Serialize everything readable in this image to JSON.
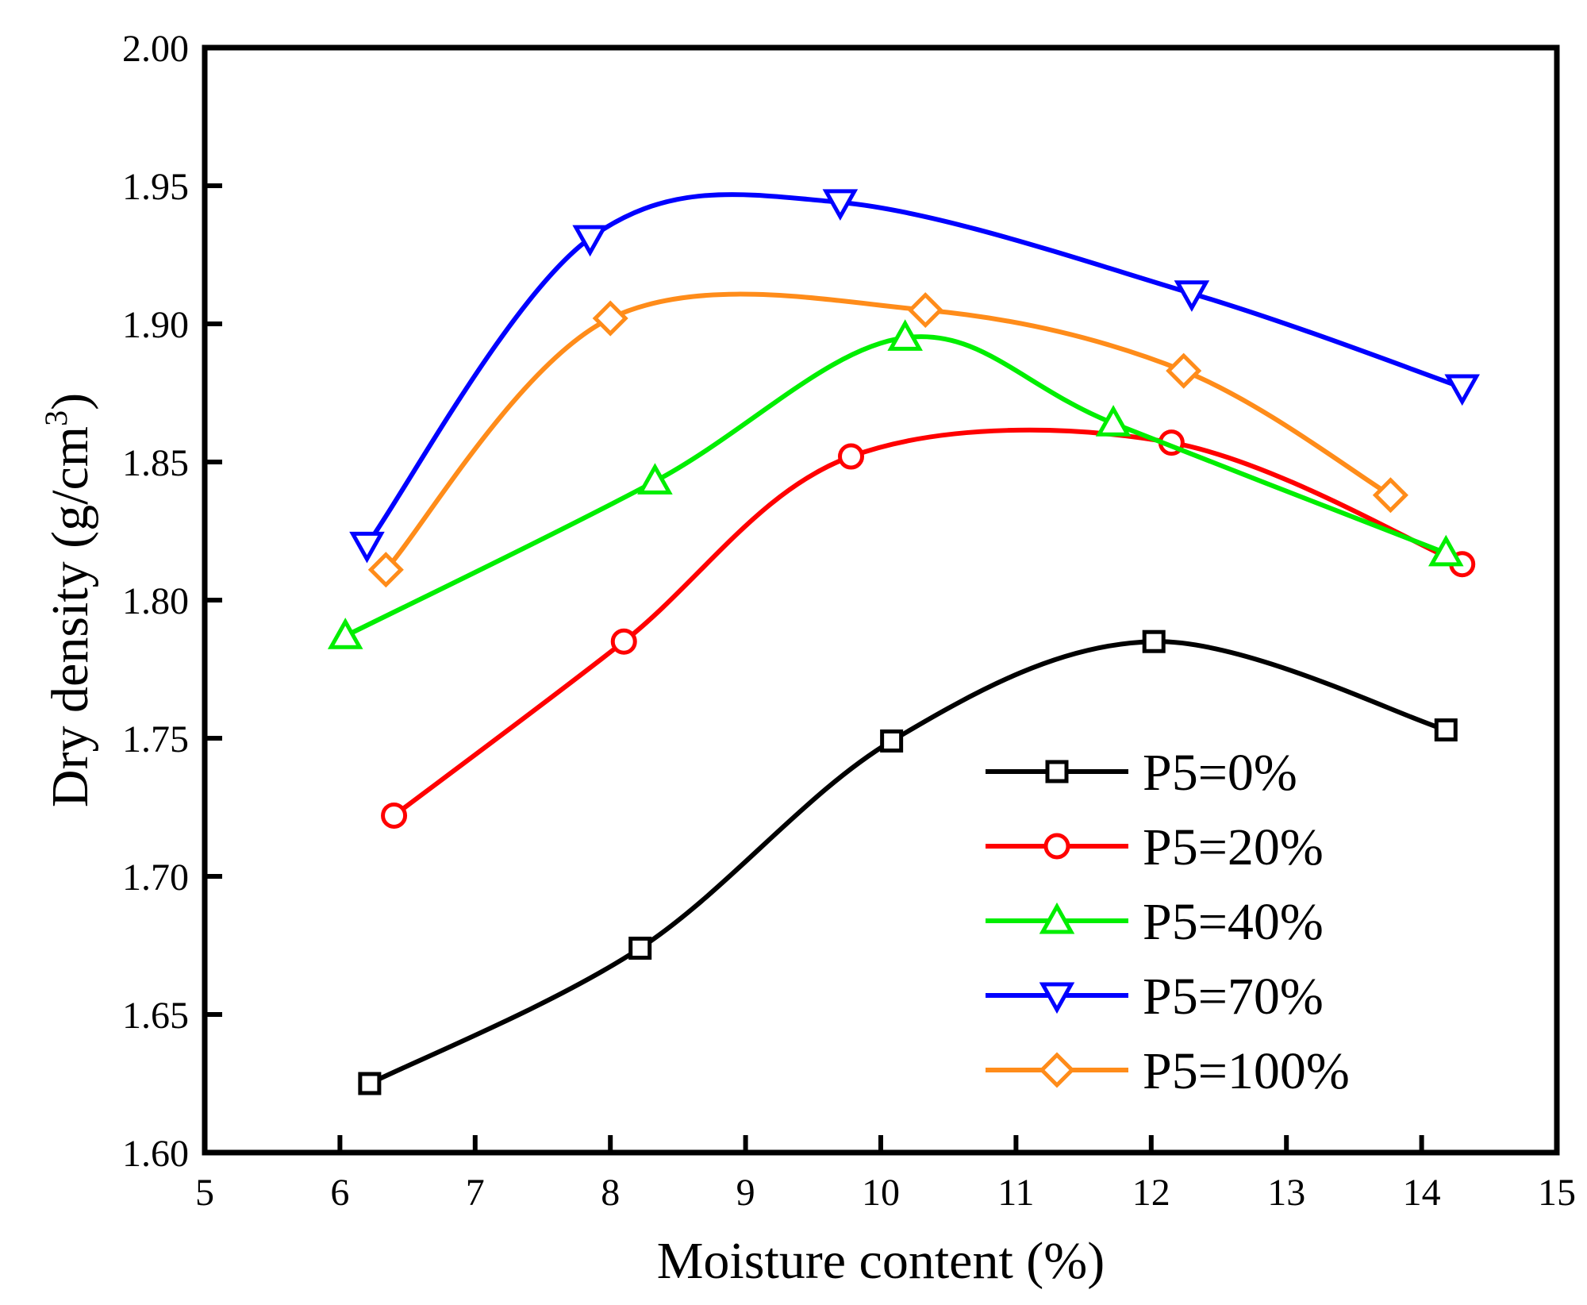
{
  "chart_data": {
    "type": "line",
    "title": "",
    "xlabel": "Moisture content (%)",
    "ylabel_main": "Dry density (g/cm",
    "ylabel_sup": "3",
    "ylabel_close": ")",
    "xlim": [
      5,
      15
    ],
    "ylim": [
      1.6,
      2.0
    ],
    "xticks": [
      "5",
      "6",
      "7",
      "8",
      "9",
      "10",
      "11",
      "12",
      "13",
      "14",
      "15"
    ],
    "yticks": [
      "1.60",
      "1.65",
      "1.70",
      "1.75",
      "1.80",
      "1.85",
      "1.90",
      "1.95",
      "2.00"
    ],
    "grid": false,
    "legend_position": "bottom-right",
    "series": [
      {
        "name": "P5=0%",
        "color": "#000000",
        "marker": "square",
        "x": [
          6.22,
          8.22,
          10.08,
          12.02,
          14.18
        ],
        "y": [
          1.625,
          1.674,
          1.749,
          1.785,
          1.753
        ]
      },
      {
        "name": "P5=20%",
        "color": "#ff0000",
        "marker": "circle",
        "x": [
          6.4,
          8.1,
          9.78,
          12.15,
          14.3
        ],
        "y": [
          1.722,
          1.785,
          1.852,
          1.857,
          1.813
        ]
      },
      {
        "name": "P5=40%",
        "color": "#00ee00",
        "marker": "triangle-up",
        "x": [
          6.04,
          8.33,
          10.18,
          11.72,
          14.18
        ],
        "y": [
          1.787,
          1.843,
          1.895,
          1.864,
          1.817
        ]
      },
      {
        "name": "P5=70%",
        "color": "#0000ff",
        "marker": "triangle-down",
        "x": [
          6.2,
          7.85,
          9.7,
          12.3,
          14.3
        ],
        "y": [
          1.82,
          1.931,
          1.944,
          1.911,
          1.877
        ]
      },
      {
        "name": "P5=100%",
        "color": "#ff8c1a",
        "marker": "diamond",
        "x": [
          6.34,
          8.0,
          10.33,
          12.24,
          13.77
        ],
        "y": [
          1.811,
          1.902,
          1.905,
          1.883,
          1.838
        ]
      }
    ]
  }
}
